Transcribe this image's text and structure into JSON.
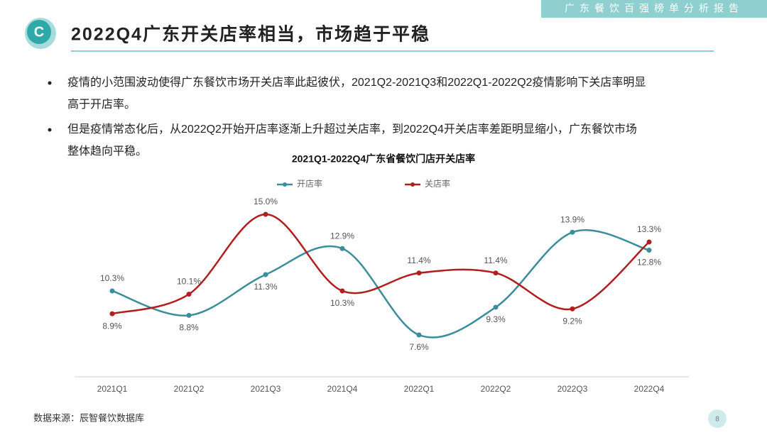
{
  "header": {
    "tab": "广东餐饮百强榜单分析报告",
    "logo": "C",
    "title": "2022Q4广东开关店率相当，市场趋于平稳"
  },
  "bullets": [
    "疫情的小范围波动使得广东餐饮市场开关店率此起彼伏，2021Q2-2021Q3和2022Q1-2022Q2疫情影响下关店率明显",
    "高于开店率。",
    "但是疫情常态化后，从2022Q2开始开店率逐渐上升超过关店率，到2022Q4开关店率差距明显缩小，广东餐饮市场",
    "整体趋向平稳。"
  ],
  "chart_data": {
    "type": "line",
    "title": "2021Q1-2022Q4广东省餐饮门店开关店率",
    "categories": [
      "2021Q1",
      "2021Q2",
      "2021Q3",
      "2021Q4",
      "2022Q1",
      "2022Q2",
      "2022Q3",
      "2022Q4"
    ],
    "series": [
      {
        "name": "开店率",
        "color": "#3b8d9c",
        "values": [
          10.3,
          8.8,
          11.3,
          12.9,
          7.6,
          9.3,
          13.9,
          12.8
        ],
        "value_labels": [
          "10.3%",
          "8.8%",
          "11.3%",
          "12.9%",
          "7.6%",
          "9.3%",
          "13.9%",
          "12.8%"
        ]
      },
      {
        "name": "关店率",
        "color": "#b01e1e",
        "values": [
          8.9,
          10.1,
          15.0,
          10.3,
          11.4,
          11.4,
          9.2,
          13.3
        ],
        "value_labels": [
          "8.9%",
          "10.1%",
          "15.0%",
          "10.3%",
          "11.4%",
          "11.4%",
          "9.2%",
          "13.3%"
        ]
      }
    ],
    "legend": "top"
  },
  "footer": {
    "source": "数据来源：辰智餐饮数据库",
    "page": "8"
  }
}
